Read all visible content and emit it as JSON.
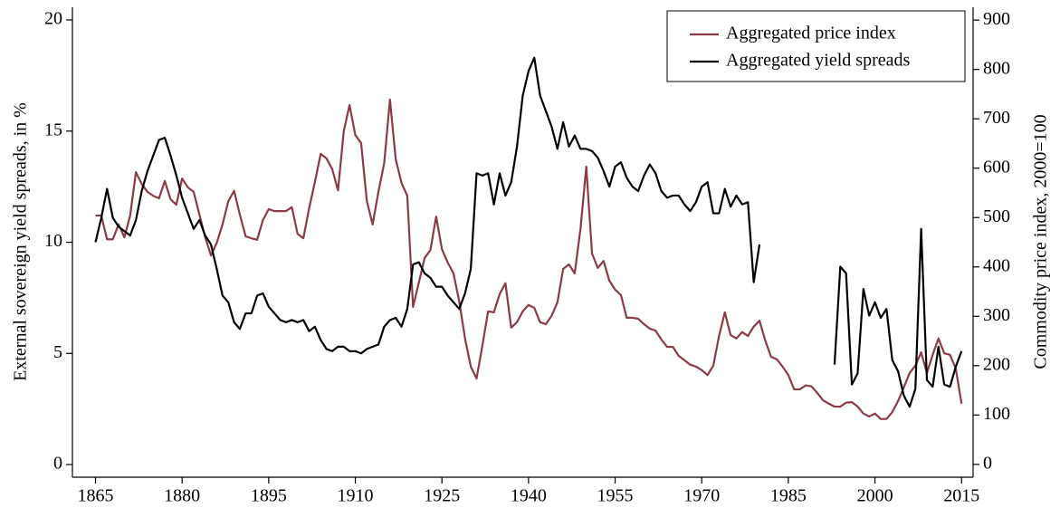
{
  "chart_data": {
    "type": "line",
    "y_label": "External sovereign yield spreads, in %",
    "y2_label": "Commodity price index, 2000=100",
    "xlim": [
      1861,
      2017
    ],
    "xticks": [
      1865,
      1880,
      1895,
      1910,
      1925,
      1940,
      1955,
      1970,
      1985,
      2000,
      2015
    ],
    "ylim": [
      -0.57,
      20.57
    ],
    "yticks": [
      0,
      5,
      10,
      15,
      20
    ],
    "y2lim": [
      -26,
      926
    ],
    "y2ticks": [
      0,
      100,
      200,
      300,
      400,
      500,
      600,
      700,
      800,
      900
    ],
    "legend": "upper right",
    "x": [
      1865,
      1866,
      1867,
      1868,
      1869,
      1870,
      1871,
      1872,
      1873,
      1874,
      1875,
      1876,
      1877,
      1878,
      1879,
      1880,
      1881,
      1882,
      1883,
      1884,
      1885,
      1886,
      1887,
      1888,
      1889,
      1890,
      1891,
      1892,
      1893,
      1894,
      1895,
      1896,
      1897,
      1898,
      1899,
      1900,
      1901,
      1902,
      1903,
      1904,
      1905,
      1906,
      1907,
      1908,
      1909,
      1910,
      1911,
      1912,
      1913,
      1914,
      1915,
      1916,
      1917,
      1918,
      1919,
      1920,
      1921,
      1922,
      1923,
      1924,
      1925,
      1926,
      1927,
      1928,
      1929,
      1930,
      1931,
      1932,
      1933,
      1934,
      1935,
      1936,
      1937,
      1938,
      1939,
      1940,
      1941,
      1942,
      1943,
      1944,
      1945,
      1946,
      1947,
      1948,
      1949,
      1950,
      1951,
      1952,
      1953,
      1954,
      1955,
      1956,
      1957,
      1958,
      1959,
      1960,
      1961,
      1962,
      1963,
      1964,
      1965,
      1966,
      1967,
      1968,
      1969,
      1970,
      1971,
      1972,
      1973,
      1974,
      1975,
      1976,
      1977,
      1978,
      1979,
      1980,
      1981,
      1982,
      1983,
      1984,
      1985,
      1986,
      1987,
      1988,
      1989,
      1990,
      1991,
      1992,
      1993,
      1994,
      1995,
      1996,
      1997,
      1998,
      1999,
      2000,
      2001,
      2002,
      2003,
      2004,
      2005,
      2006,
      2007,
      2008,
      2009,
      2010,
      2011,
      2012,
      2013,
      2014,
      2015
    ],
    "series": [
      {
        "name": "Aggregated price index",
        "color": "#8c3a45",
        "axis": "y2",
        "values": [
          504,
          504,
          456,
          456,
          486,
          460,
          504,
          592,
          568,
          552,
          544,
          539,
          574,
          537,
          526,
          579,
          561,
          552,
          506,
          460,
          423,
          449,
          486,
          533,
          554,
          506,
          462,
          458,
          455,
          495,
          517,
          513,
          513,
          513,
          521,
          467,
          458,
          519,
          572,
          629,
          620,
          598,
          555,
          675,
          728,
          667,
          651,
          533,
          486,
          552,
          610,
          739,
          618,
          570,
          544,
          319,
          368,
          418,
          434,
          502,
          436,
          409,
          387,
          330,
          255,
          198,
          174,
          240,
          310,
          308,
          345,
          367,
          277,
          288,
          310,
          323,
          317,
          288,
          284,
          301,
          328,
          396,
          405,
          387,
          477,
          603,
          427,
          398,
          412,
          372,
          354,
          343,
          297,
          297,
          295,
          284,
          275,
          271,
          253,
          238,
          238,
          220,
          211,
          202,
          198,
          191,
          181,
          200,
          260,
          308,
          262,
          255,
          268,
          260,
          279,
          291,
          251,
          218,
          213,
          198,
          181,
          152,
          152,
          160,
          158,
          145,
          130,
          123,
          117,
          117,
          125,
          126,
          117,
          103,
          97,
          103,
          92,
          92,
          106,
          128,
          156,
          185,
          200,
          227,
          185,
          222,
          255,
          225,
          222,
          194,
          123
        ]
      },
      {
        "name": "Aggregated yield spreads",
        "color": "#000000",
        "values": [
          10.0,
          11.1,
          12.4,
          11.1,
          10.7,
          10.5,
          10.3,
          11.0,
          12.3,
          13.2,
          13.9,
          14.6,
          14.7,
          13.9,
          13.0,
          12.0,
          11.3,
          10.6,
          11.0,
          10.3,
          9.9,
          8.8,
          7.6,
          7.3,
          6.4,
          6.1,
          6.8,
          6.8,
          7.6,
          7.7,
          7.1,
          6.8,
          6.5,
          6.4,
          6.5,
          6.4,
          6.5,
          6.0,
          6.2,
          5.6,
          5.2,
          5.1,
          5.3,
          5.3,
          5.1,
          5.1,
          5.0,
          5.2,
          5.3,
          5.4,
          6.2,
          6.5,
          6.6,
          6.2,
          7.0,
          9.0,
          9.1,
          8.6,
          8.4,
          8.0,
          8.0,
          7.6,
          7.3,
          7.0,
          7.7,
          8.8,
          13.1,
          13.0,
          13.1,
          11.7,
          13.1,
          12.1,
          12.7,
          14.3,
          16.6,
          17.7,
          18.3,
          16.6,
          15.9,
          15.2,
          14.2,
          15.4,
          14.3,
          14.8,
          14.2,
          14.2,
          14.1,
          13.8,
          13.2,
          12.5,
          13.4,
          13.6,
          12.9,
          12.5,
          12.3,
          13.0,
          13.5,
          13.1,
          12.3,
          12.0,
          12.1,
          12.1,
          11.7,
          11.4,
          11.8,
          12.5,
          12.7,
          11.3,
          11.3,
          12.4,
          11.6,
          12.1,
          11.7,
          11.8,
          8.2,
          9.9,
          null,
          null,
          null,
          null,
          null,
          null,
          null,
          null,
          null,
          null,
          null,
          null,
          4.5,
          8.9,
          8.6,
          3.6,
          4.1,
          7.9,
          6.7,
          7.3,
          6.6,
          7.0,
          4.7,
          4.2,
          3.1,
          2.6,
          3.4,
          10.6,
          3.8,
          3.5,
          5.3,
          3.6,
          3.5,
          4.4,
          5.1
        ]
      }
    ]
  }
}
